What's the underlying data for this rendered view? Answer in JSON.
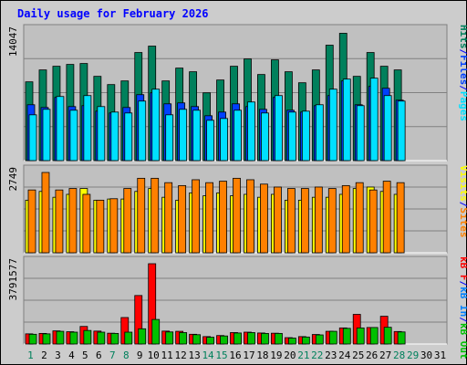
{
  "title": "Daily usage for February 2026",
  "colors": {
    "hits": "#00805c",
    "files": "#0040ff",
    "pages": "#00e0ff",
    "visits": "#ffff00",
    "sites": "#ff8000",
    "kb_f": "#ff0000",
    "kb_in": "#0080ff",
    "kb_out": "#00c000",
    "title": "#0000ff",
    "panel": "#c0c0c0"
  },
  "chart_data": [
    {
      "type": "bar",
      "panel": "hits-files-pages",
      "ymax_label": "14047",
      "ymax": 14047,
      "categories": [
        "1",
        "2",
        "3",
        "4",
        "5",
        "6",
        "7",
        "8",
        "9",
        "10",
        "11",
        "12",
        "13",
        "14",
        "15",
        "16",
        "17",
        "18",
        "19",
        "20",
        "21",
        "22",
        "23",
        "24",
        "25",
        "26",
        "27",
        "28",
        "29",
        "30",
        "31"
      ],
      "legend": [
        "Hits",
        "/",
        "Files",
        "/",
        "Pages"
      ],
      "series": [
        {
          "name": "Hits",
          "values": [
            8600,
            9900,
            10300,
            10500,
            10600,
            9200,
            8300,
            8700,
            11800,
            12500,
            8700,
            10100,
            9700,
            7400,
            8800,
            10300,
            11100,
            9400,
            11000,
            9700,
            8500,
            9900,
            12600,
            13900,
            9200,
            11800,
            10300,
            9900,
            0,
            0,
            0
          ]
        },
        {
          "name": "Files",
          "values": [
            6100,
            5800,
            6900,
            5900,
            6000,
            5400,
            5200,
            5800,
            7200,
            7400,
            6200,
            6300,
            5900,
            4900,
            5300,
            6200,
            5900,
            5600,
            6900,
            5500,
            5300,
            6000,
            7100,
            8700,
            6100,
            8100,
            7900,
            6600,
            0,
            0,
            0
          ]
        },
        {
          "name": "Pages",
          "values": [
            5000,
            5600,
            7000,
            5500,
            7100,
            5900,
            5300,
            5200,
            6500,
            7800,
            5000,
            5600,
            5500,
            4400,
            4600,
            5500,
            6400,
            5200,
            7100,
            5300,
            5400,
            6100,
            7800,
            8900,
            6000,
            9000,
            7100,
            6500,
            0,
            0,
            0
          ]
        }
      ]
    },
    {
      "type": "bar",
      "panel": "visits-sites",
      "ymax_label": "2749",
      "ymax": 2749,
      "categories": [
        "1",
        "2",
        "3",
        "4",
        "5",
        "6",
        "7",
        "8",
        "9",
        "10",
        "11",
        "12",
        "13",
        "14",
        "15",
        "16",
        "17",
        "18",
        "19",
        "20",
        "21",
        "22",
        "23",
        "24",
        "25",
        "26",
        "27",
        "28",
        "29",
        "30",
        "31"
      ],
      "legend": [
        "Visits",
        "/",
        "Sites"
      ],
      "series": [
        {
          "name": "Visits",
          "values": [
            1800,
            2100,
            1900,
            2000,
            2200,
            1800,
            1840,
            1840,
            2100,
            2200,
            1900,
            1800,
            2050,
            1950,
            2050,
            1950,
            2000,
            1900,
            2000,
            1800,
            1800,
            1900,
            1900,
            2000,
            2200,
            2250,
            2100,
            2000,
            0,
            0,
            0
          ]
        },
        {
          "name": "Sites",
          "values": [
            2150,
            2749,
            2150,
            2200,
            2000,
            1800,
            1850,
            2200,
            2550,
            2550,
            2400,
            2300,
            2500,
            2400,
            2450,
            2550,
            2500,
            2350,
            2250,
            2200,
            2200,
            2250,
            2200,
            2300,
            2400,
            2150,
            2450,
            2400,
            0,
            0,
            0
          ]
        }
      ]
    },
    {
      "type": "bar",
      "panel": "kbytes",
      "ymax_label": "3791577",
      "ymax": 3791577,
      "categories": [
        "1",
        "2",
        "3",
        "4",
        "5",
        "6",
        "7",
        "8",
        "9",
        "10",
        "11",
        "12",
        "13",
        "14",
        "15",
        "16",
        "17",
        "18",
        "19",
        "20",
        "21",
        "22",
        "23",
        "24",
        "25",
        "26",
        "27",
        "28",
        "29",
        "30",
        "31"
      ],
      "legend": [
        "kB F",
        "/",
        "kB In",
        "/",
        "kB Out"
      ],
      "series": [
        {
          "name": "kB F",
          "values": [
            480000,
            500000,
            620000,
            580000,
            830000,
            610000,
            510000,
            1250000,
            2290000,
            3791577,
            610000,
            600000,
            460000,
            350000,
            400000,
            540000,
            560000,
            520000,
            510000,
            300000,
            350000,
            450000,
            600000,
            760000,
            1400000,
            780000,
            1310000,
            590000,
            0,
            0,
            0
          ]
        },
        {
          "name": "kB In",
          "values": [
            0,
            0,
            0,
            0,
            0,
            0,
            0,
            0,
            0,
            0,
            0,
            0,
            0,
            0,
            0,
            0,
            0,
            0,
            0,
            0,
            0,
            0,
            0,
            0,
            0,
            0,
            0,
            0,
            0,
            0,
            0
          ]
        },
        {
          "name": "kB Out",
          "values": [
            460000,
            480000,
            600000,
            560000,
            640000,
            560000,
            500000,
            560000,
            720000,
            1160000,
            570000,
            540000,
            440000,
            320000,
            380000,
            520000,
            540000,
            500000,
            500000,
            280000,
            330000,
            430000,
            600000,
            740000,
            760000,
            780000,
            790000,
            570000,
            0,
            0,
            0
          ]
        }
      ]
    }
  ]
}
